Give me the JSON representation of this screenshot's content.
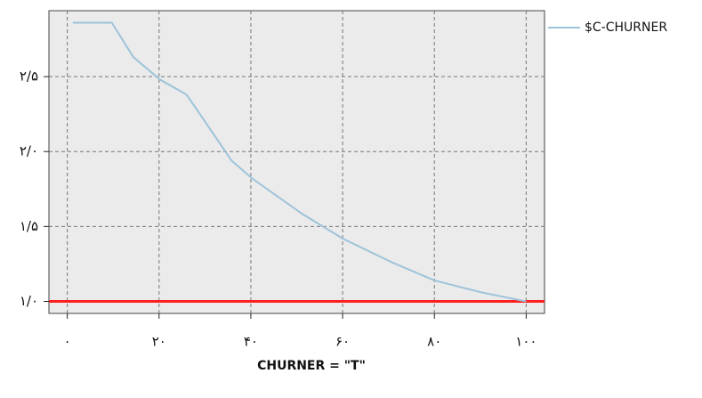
{
  "chart_data": {
    "type": "line",
    "title": "CHURNER = \"T\"",
    "x": [
      1.2,
      9.7,
      14.4,
      20.2,
      26,
      35.8,
      40.3,
      51.4,
      60,
      70.8,
      80,
      90.3,
      100
    ],
    "series": [
      {
        "name": "$C-CHURNER",
        "color": "#9dc3d9",
        "values": [
          2.86,
          2.86,
          2.63,
          2.48,
          2.38,
          1.94,
          1.82,
          1.58,
          1.42,
          1.26,
          1.14,
          1.06,
          1.0
        ]
      }
    ],
    "reference_line": {
      "value": 1.0,
      "color": "#ff2020"
    },
    "xlim": [
      -4,
      104
    ],
    "ylim": [
      0.92,
      2.94
    ],
    "xticks": [
      {
        "value": 0,
        "label": "۰"
      },
      {
        "value": 20,
        "label": "۲۰"
      },
      {
        "value": 40,
        "label": "۴۰"
      },
      {
        "value": 60,
        "label": "۶۰"
      },
      {
        "value": 80,
        "label": "۸۰"
      },
      {
        "value": 100,
        "label": "۱۰۰"
      }
    ],
    "yticks": [
      {
        "value": 1.0,
        "label": "۱/۰"
      },
      {
        "value": 1.5,
        "label": "۱/۵"
      },
      {
        "value": 2.0,
        "label": "۲/۰"
      },
      {
        "value": 2.5,
        "label": "۲/۵"
      }
    ],
    "grid": true
  }
}
